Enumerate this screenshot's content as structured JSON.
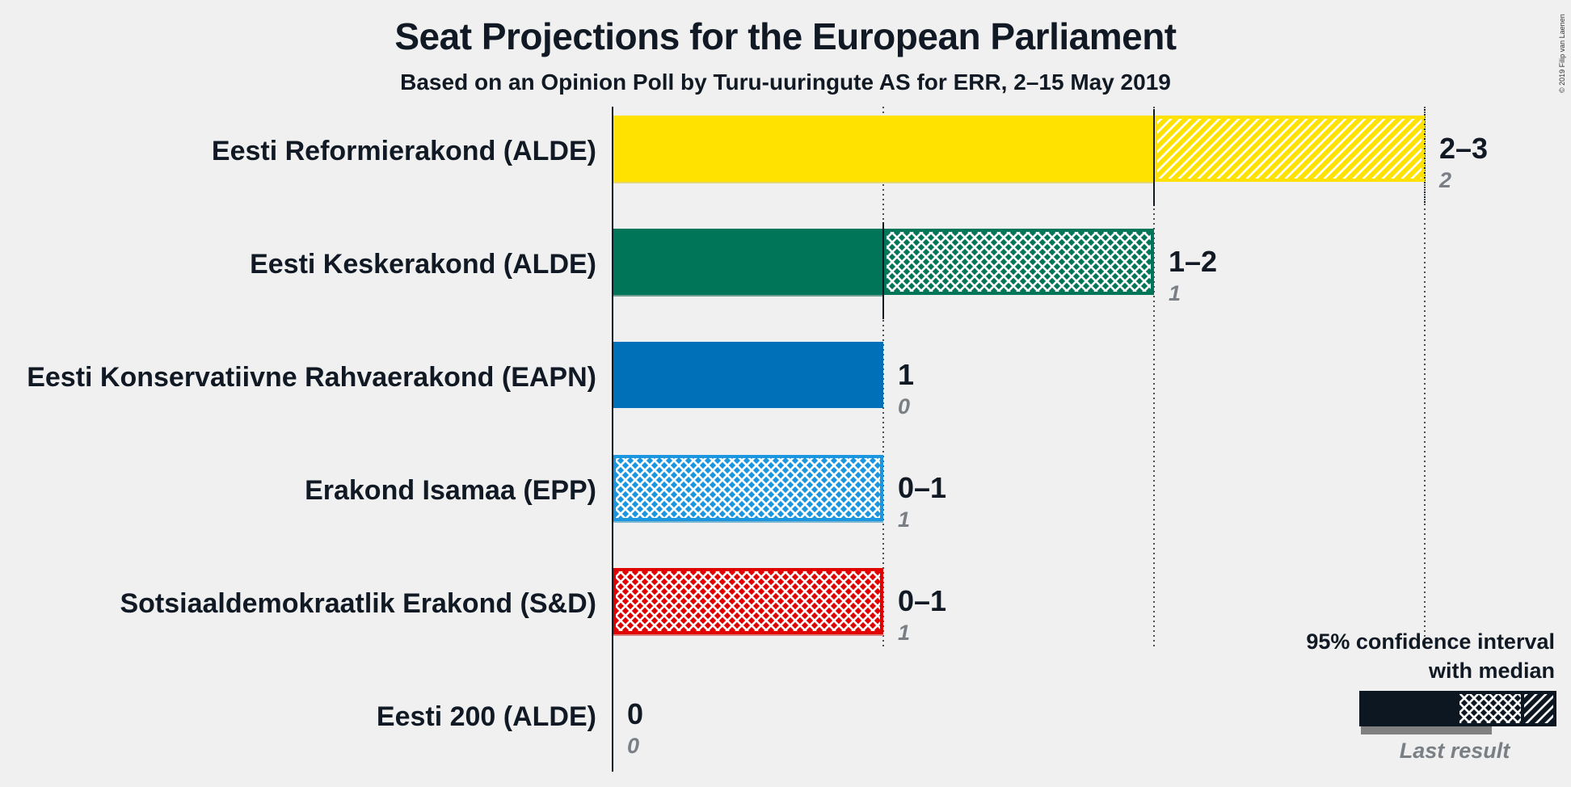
{
  "header": {
    "title": "Seat Projections for the European Parliament",
    "subtitle": "Based on an Opinion Poll by Turu-uuringute AS for ERR, 2–15 May 2019",
    "credit": "© 2019 Filip van Laenen"
  },
  "legend": {
    "title_line1": "95% confidence interval",
    "title_line2": "with median",
    "last_result_label": "Last result"
  },
  "colors": {
    "background": "#f0f0f0",
    "text": "#111a24",
    "muted": "#7a7f85"
  },
  "chart_data": {
    "type": "bar",
    "orientation": "horizontal",
    "title": "Seat Projections for the European Parliament",
    "subtitle": "Based on an Opinion Poll by Turu-uuringute AS for ERR, 2–15 May 2019",
    "xlim": [
      0,
      3
    ],
    "series": [
      {
        "party": "Eesti Reformierakond (ALDE)",
        "low": 2,
        "median": 2,
        "high": 3,
        "last_result": 2,
        "range_label": "2–3",
        "last_label": "2",
        "color": "#FFE200",
        "last_color": "#e3d676"
      },
      {
        "party": "Eesti Keskerakond (ALDE)",
        "low": 1,
        "median": 1,
        "high": 2,
        "last_result": 1,
        "range_label": "1–2",
        "last_label": "1",
        "color": "#007557",
        "last_color": "#729e92"
      },
      {
        "party": "Eesti Konservatiivne Rahvaerakond (EAPN)",
        "low": 1,
        "median": 1,
        "high": 1,
        "last_result": 0,
        "range_label": "1",
        "last_label": "0",
        "color": "#0070b8",
        "last_color": "#7aa6c8"
      },
      {
        "party": "Erakond Isamaa (EPP)",
        "low": 0,
        "median": 0,
        "high": 1,
        "last_result": 1,
        "range_label": "0–1",
        "last_label": "1",
        "color": "#1d96e0",
        "last_color": "#7db6cf"
      },
      {
        "party": "Sotsiaaldemokraatlik Erakond (S&D)",
        "low": 0,
        "median": 0,
        "high": 1,
        "last_result": 1,
        "range_label": "0–1",
        "last_label": "1",
        "color": "#e10000",
        "last_color": "#d98080"
      },
      {
        "party": "Eesti 200 (ALDE)",
        "low": 0,
        "median": 0,
        "high": 0,
        "last_result": 0,
        "range_label": "0",
        "last_label": "0",
        "color": "#444444",
        "last_color": "#999999"
      }
    ]
  }
}
